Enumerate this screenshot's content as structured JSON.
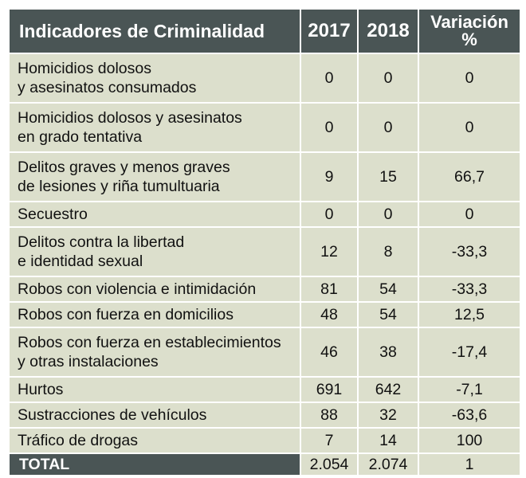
{
  "chart_data": {
    "type": "table",
    "columns": [
      "Indicadores de Criminalidad",
      "2017",
      "2018",
      "Variación",
      "%"
    ],
    "rows": [
      {
        "label": [
          "Homicidios dolosos",
          "y asesinatos consumados"
        ],
        "y2017": "0",
        "y2018": "0",
        "variation": "0"
      },
      {
        "label": [
          "Homicidios dolosos y asesinatos",
          "en grado tentativa"
        ],
        "y2017": "0",
        "y2018": "0",
        "variation": "0"
      },
      {
        "label": [
          "Delitos graves y menos graves",
          "de lesiones y riña tumultuaria"
        ],
        "y2017": "9",
        "y2018": "15",
        "variation": "66,7"
      },
      {
        "label": [
          "Secuestro"
        ],
        "y2017": "0",
        "y2018": "0",
        "variation": "0"
      },
      {
        "label": [
          "Delitos contra la libertad",
          "e identidad sexual"
        ],
        "y2017": "12",
        "y2018": "8",
        "variation": "-33,3"
      },
      {
        "label": [
          "Robos con violencia e intimidación"
        ],
        "y2017": "81",
        "y2018": "54",
        "variation": "-33,3"
      },
      {
        "label": [
          "Robos con fuerza en domicilios"
        ],
        "y2017": "48",
        "y2018": "54",
        "variation": "12,5"
      },
      {
        "label": [
          "Robos con fuerza en establecimientos",
          "y otras instalaciones"
        ],
        "y2017": "46",
        "y2018": "38",
        "variation": "-17,4"
      },
      {
        "label": [
          "Hurtos"
        ],
        "y2017": "691",
        "y2018": "642",
        "variation": "-7,1"
      },
      {
        "label": [
          "Sustracciones de vehículos"
        ],
        "y2017": "88",
        "y2018": "32",
        "variation": "-63,6"
      },
      {
        "label": [
          "Tráfico de drogas"
        ],
        "y2017": "7",
        "y2018": "14",
        "variation": "100"
      }
    ],
    "total": {
      "label": "TOTAL",
      "y2017": "2.054",
      "y2018": "2.074",
      "variation": "1"
    }
  },
  "colors": {
    "header_bg": "#4a5555",
    "header_text": "#ffffff",
    "cell_bg": "#dcdfcc",
    "cell_text": "#111111"
  }
}
